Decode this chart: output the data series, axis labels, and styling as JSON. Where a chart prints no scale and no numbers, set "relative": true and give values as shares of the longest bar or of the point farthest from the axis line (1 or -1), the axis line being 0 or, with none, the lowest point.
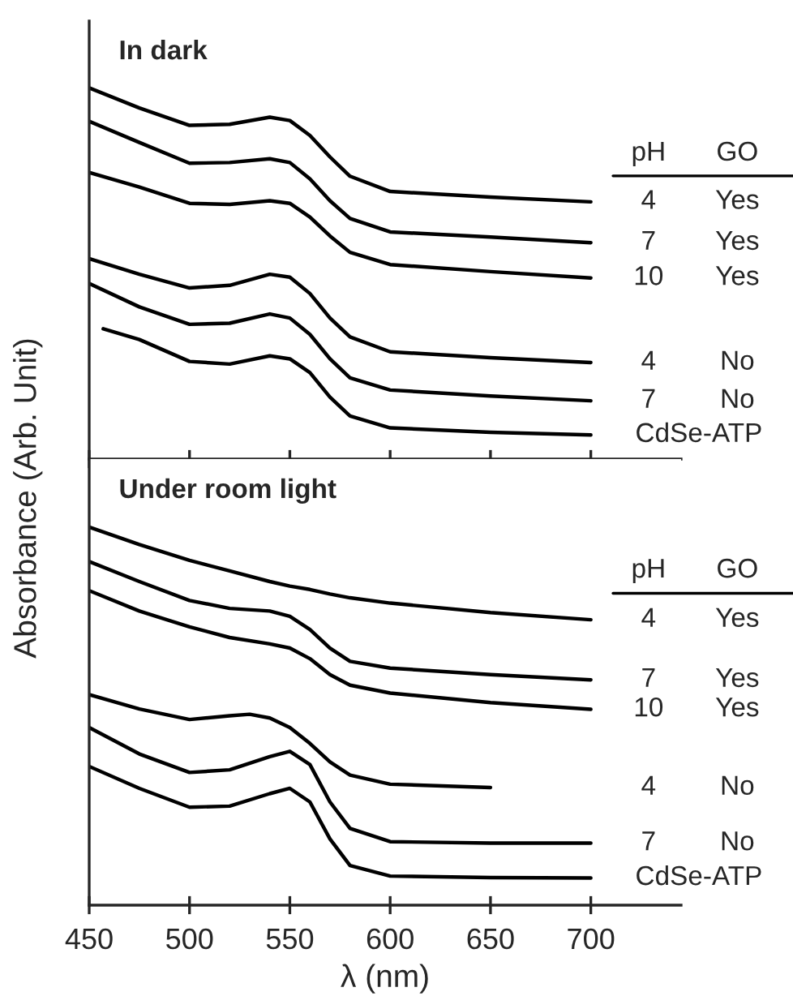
{
  "chart_data": [
    {
      "type": "line",
      "title": "In dark",
      "ylabel": "Absorbance (Arb. Unit)",
      "relative": true,
      "xlim": [
        450,
        745
      ],
      "xticks": [
        450,
        500,
        550,
        600,
        650,
        700
      ],
      "tick_labels": false,
      "grid": false,
      "legend": false,
      "x": [
        450,
        475,
        500,
        520,
        540,
        550,
        560,
        570,
        580,
        600,
        650,
        700
      ],
      "series": [
        {
          "color": "#000000",
          "values": [
            1,
            0.946,
            0.899,
            0.902,
            0.921,
            0.912,
            0.872,
            0.814,
            0.762,
            0.721,
            0.706,
            0.693
          ]
        },
        {
          "color": "#000000",
          "values": [
            0.91,
            0.853,
            0.797,
            0.799,
            0.809,
            0.799,
            0.755,
            0.696,
            0.648,
            0.612,
            0.598,
            0.583
          ]
        },
        {
          "color": "#000000",
          "values": [
            0.772,
            0.733,
            0.689,
            0.686,
            0.696,
            0.689,
            0.652,
            0.601,
            0.557,
            0.524,
            0.505,
            0.488
          ]
        },
        {
          "color": "#000000",
          "values": [
            0.54,
            0.498,
            0.461,
            0.468,
            0.498,
            0.49,
            0.446,
            0.38,
            0.329,
            0.289,
            0.273,
            0.26
          ]
        },
        {
          "color": "#000000",
          "values": [
            0.473,
            0.41,
            0.363,
            0.366,
            0.391,
            0.38,
            0.336,
            0.27,
            0.219,
            0.186,
            0.17,
            0.157
          ]
        },
        {
          "color": "#000000",
          "x": [
            457,
            475,
            500,
            520,
            540,
            550,
            560,
            570,
            580,
            600,
            650,
            700
          ],
          "values": [
            0.351,
            0.322,
            0.263,
            0.256,
            0.278,
            0.27,
            0.233,
            0.167,
            0.116,
            0.084,
            0.072,
            0.065
          ]
        }
      ],
      "annotations": [
        "pH",
        "GO",
        "4",
        "Yes",
        "7",
        "Yes",
        "10",
        "Yes",
        "4",
        "No",
        "7",
        "No",
        "CdSe-ATP"
      ]
    },
    {
      "type": "line",
      "title": "Under room light",
      "xlabel": "λ (nm)",
      "relative": true,
      "xlim": [
        450,
        745
      ],
      "xticks": [
        450,
        500,
        550,
        600,
        650,
        700
      ],
      "tick_labels": "x",
      "grid": false,
      "legend": false,
      "x": [
        450,
        475,
        500,
        520,
        540,
        550,
        560,
        570,
        580,
        600,
        650,
        700
      ],
      "series": [
        {
          "color": "#000000",
          "values": [
            1,
            0.954,
            0.912,
            0.884,
            0.856,
            0.844,
            0.835,
            0.823,
            0.813,
            0.799,
            0.774,
            0.755
          ]
        },
        {
          "color": "#000000",
          "values": [
            0.909,
            0.856,
            0.806,
            0.785,
            0.778,
            0.764,
            0.729,
            0.68,
            0.645,
            0.627,
            0.61,
            0.596
          ]
        },
        {
          "color": "#000000",
          "values": [
            0.832,
            0.778,
            0.736,
            0.708,
            0.691,
            0.68,
            0.652,
            0.61,
            0.582,
            0.561,
            0.536,
            0.518
          ]
        },
        {
          "color": "#000000",
          "x": [
            450,
            475,
            500,
            520,
            530,
            540,
            550,
            560,
            570,
            580,
            600,
            650
          ],
          "values": [
            0.557,
            0.519,
            0.491,
            0.501,
            0.505,
            0.495,
            0.47,
            0.428,
            0.379,
            0.344,
            0.32,
            0.311
          ]
        },
        {
          "color": "#000000",
          "values": [
            0.47,
            0.4,
            0.351,
            0.358,
            0.393,
            0.407,
            0.372,
            0.273,
            0.203,
            0.168,
            0.164,
            0.164
          ]
        },
        {
          "color": "#000000",
          "values": [
            0.367,
            0.309,
            0.259,
            0.262,
            0.295,
            0.309,
            0.273,
            0.175,
            0.105,
            0.077,
            0.073,
            0.072
          ]
        }
      ],
      "annotations": [
        "pH",
        "GO",
        "4",
        "Yes",
        "7",
        "Yes",
        "10",
        "Yes",
        "4",
        "No",
        "7",
        "No",
        "CdSe-ATP"
      ]
    }
  ]
}
